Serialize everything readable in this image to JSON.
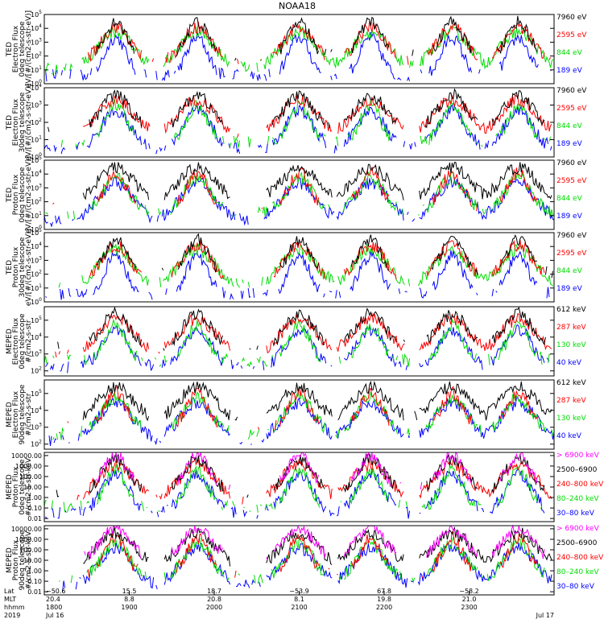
{
  "title": "NOAA18",
  "chart_data": {
    "type": "line",
    "x_range_label": [
      "Jul 16",
      "Jul 17"
    ],
    "year": "2019",
    "panels": [
      {
        "ylabel": [
          "TED",
          "Electron Flux",
          "0deg telescope",
          "eV/[#/(cm2-s-str-eV)]"
        ],
        "ylog": true,
        "ticks": [
          "10^0",
          "10^1",
          "10^2",
          "10^3",
          "10^4",
          "10^5"
        ],
        "ymin_exp": 0,
        "ymax_exp": 5,
        "legend": [
          {
            "label": "7960 eV",
            "color": "#000000"
          },
          {
            "label": "2595 eV",
            "color": "#ff0000"
          },
          {
            "label": "844 eV",
            "color": "#00dd00"
          },
          {
            "label": "189 eV",
            "color": "#0000ff"
          }
        ]
      },
      {
        "ylabel": [
          "TED",
          "Electron Flux",
          "30deg telescope",
          "eV/[#/(cm2-s-str-eV)]"
        ],
        "ylog": true,
        "ticks": [
          "10^0",
          "10^1",
          "10^2",
          "10^3",
          "10^4"
        ],
        "ymin_exp": 0,
        "ymax_exp": 4,
        "legend": [
          {
            "label": "7960 eV",
            "color": "#000000"
          },
          {
            "label": "2595 eV",
            "color": "#ff0000"
          },
          {
            "label": "844 eV",
            "color": "#00dd00"
          },
          {
            "label": "189 eV",
            "color": "#0000ff"
          }
        ]
      },
      {
        "ylabel": [
          "TED",
          "Proton Flux",
          "0deg telescope",
          "eV/[#/(cm2-s-str-eV)]"
        ],
        "ylog": true,
        "ticks": [
          "10^0",
          "10^1",
          "10^2",
          "10^3",
          "10^4",
          "10^5"
        ],
        "ymin_exp": 0,
        "ymax_exp": 5,
        "legend": [
          {
            "label": "7960 eV",
            "color": "#000000"
          },
          {
            "label": "2595 eV",
            "color": "#ff0000"
          },
          {
            "label": "844 eV",
            "color": "#00dd00"
          },
          {
            "label": "189 eV",
            "color": "#0000ff"
          }
        ]
      },
      {
        "ylabel": [
          "TED",
          "Proton Flux",
          "30deg telescope",
          "eV/[#/(cm2-s-str-eV)]"
        ],
        "ylog": true,
        "ticks": [
          "10^0",
          "10^1",
          "10^2",
          "10^3",
          "10^4",
          "10^5"
        ],
        "ymin_exp": 0,
        "ymax_exp": 5,
        "legend": [
          {
            "label": "7960 eV",
            "color": "#000000"
          },
          {
            "label": "2595 eV",
            "color": "#ff0000"
          },
          {
            "label": "844 eV",
            "color": "#00dd00"
          },
          {
            "label": "189 eV",
            "color": "#0000ff"
          }
        ]
      },
      {
        "ylabel": [
          "MEPED",
          "Electron Flux",
          "0deg telescope",
          "#/cm2-s-str"
        ],
        "ylog": true,
        "ticks": [
          "10^2",
          "10^3",
          "10^4",
          "10^5"
        ],
        "ymin_exp": 1.7,
        "ymax_exp": 5.8,
        "legend": [
          {
            "label": "612 keV",
            "color": "#000000"
          },
          {
            "label": "287 keV",
            "color": "#ff0000"
          },
          {
            "label": "130 keV",
            "color": "#00dd00"
          },
          {
            "label": "40 keV",
            "color": "#0000ff"
          }
        ]
      },
      {
        "ylabel": [
          "MEPED",
          "Electron Flux",
          "90deg telescope",
          "#/cm2-s-str"
        ],
        "ylog": true,
        "ticks": [
          "10^2",
          "10^3",
          "10^4",
          "10^5"
        ],
        "ymin_exp": 1.7,
        "ymax_exp": 5.8,
        "legend": [
          {
            "label": "612 keV",
            "color": "#000000"
          },
          {
            "label": "287 keV",
            "color": "#ff0000"
          },
          {
            "label": "130 keV",
            "color": "#00dd00"
          },
          {
            "label": "40 keV",
            "color": "#0000ff"
          }
        ]
      },
      {
        "ylabel": [
          "MEPED",
          "Proton Flux",
          "0deg telescope",
          "#/cm2-s-str-keV"
        ],
        "ylog": true,
        "ticks": [
          "0.01",
          "0.10",
          "1.00",
          "10.00",
          "100.00",
          "1000.00",
          "10000.00"
        ],
        "ymin_exp": -2.3,
        "ymax_exp": 4.3,
        "legend": [
          {
            "label": "> 6900 keV",
            "color": "#ff00ff"
          },
          {
            "label": "2500–6900",
            "color": "#000000"
          },
          {
            "label": "240–800 keV",
            "color": "#ff0000"
          },
          {
            "label": "80–240 keV",
            "color": "#00dd00"
          },
          {
            "label": "30–80 keV",
            "color": "#0000ff"
          }
        ]
      },
      {
        "ylabel": [
          "MEPED",
          "Proton Flux",
          "90deg telescope",
          "#/cm2-s-str-keV"
        ],
        "ylog": true,
        "ticks": [
          "0.01",
          "0.10",
          "1.00",
          "10.00",
          "100.00",
          "1000.00",
          "10000.00"
        ],
        "ymin_exp": -2.3,
        "ymax_exp": 4.3,
        "legend": [
          {
            "label": "> 6900 keV",
            "color": "#ff00ff"
          },
          {
            "label": "2500–6900",
            "color": "#000000"
          },
          {
            "label": "240–800 keV",
            "color": "#ff0000"
          },
          {
            "label": "80–240 keV",
            "color": "#00dd00"
          },
          {
            "label": "30–80 keV",
            "color": "#0000ff"
          }
        ]
      }
    ],
    "footer": {
      "row_labels": [
        "Lat",
        "MLT",
        "hhmm",
        "2019"
      ],
      "ticks": [
        {
          "lat": "−50.6",
          "mlt": "20.4",
          "hhmm": "1800",
          "date": "Jul 16"
        },
        {
          "lat": "15.5",
          "mlt": "8.8",
          "hhmm": "1900",
          "date": ""
        },
        {
          "lat": "18.7",
          "mlt": "20.8",
          "hhmm": "2000",
          "date": ""
        },
        {
          "lat": "−53.9",
          "mlt": "8.1",
          "hhmm": "2100",
          "date": ""
        },
        {
          "lat": "67.8",
          "mlt": "19.8",
          "hhmm": "2200",
          "date": ""
        },
        {
          "lat": "−58.2",
          "mlt": "21.0",
          "hhmm": "2300",
          "date": ""
        },
        {
          "lat": "",
          "mlt": "",
          "hhmm": "",
          "date": "Jul 17"
        }
      ]
    }
  }
}
